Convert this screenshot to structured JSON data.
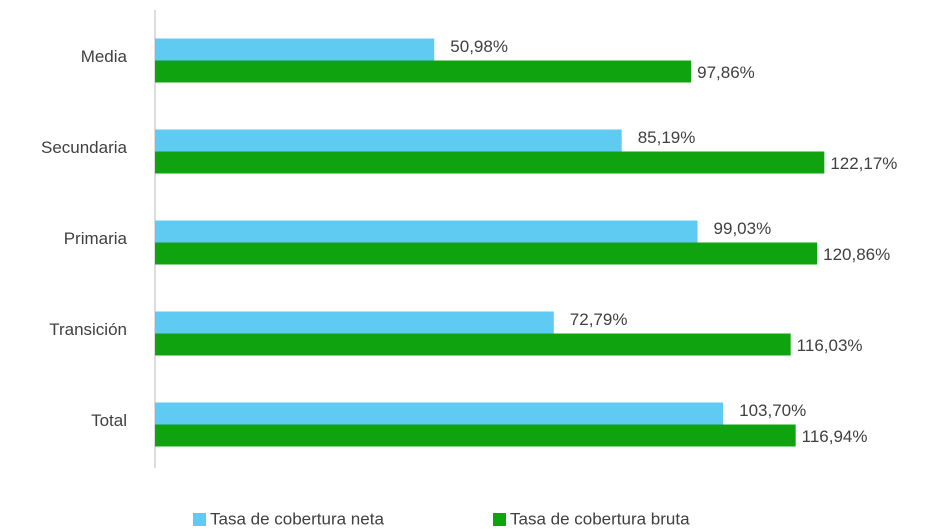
{
  "chart_data": {
    "type": "hbar",
    "categories": [
      "Media",
      "Secundaria",
      "Primaria",
      "Transición",
      "Total"
    ],
    "series": [
      {
        "name": "Tasa de cobertura neta",
        "color": "#5fcbf3",
        "values": [
          50.98,
          85.19,
          99.03,
          72.79,
          103.7
        ],
        "value_labels": [
          "50,98%",
          "85,19%",
          "99,03%",
          "72,79%",
          "103,70%"
        ]
      },
      {
        "name": "Tasa de cobertura bruta",
        "color": "#0fa40f",
        "values": [
          97.86,
          122.17,
          120.86,
          116.03,
          116.94
        ],
        "value_labels": [
          "97,86%",
          "122,17%",
          "120,86%",
          "116,03%",
          "116,94%"
        ]
      }
    ],
    "xlim": [
      0,
      140
    ],
    "legend": "bottom"
  }
}
